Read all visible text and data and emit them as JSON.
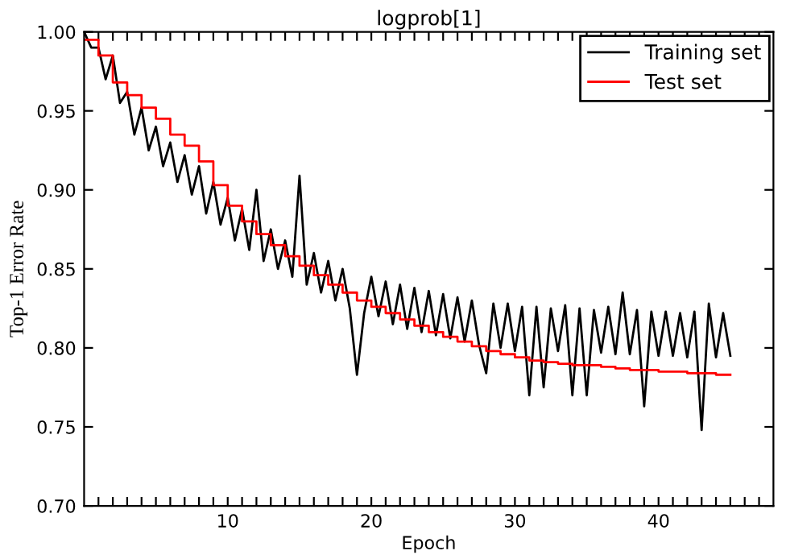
{
  "chart_data": {
    "type": "line",
    "title": "logprob[1]",
    "xlabel": "Epoch",
    "ylabel": "Top-1 Error Rate",
    "xlim": [
      0,
      48
    ],
    "ylim": [
      0.7,
      1.0
    ],
    "xticks": [
      {
        "value": 1,
        "label": null
      },
      {
        "value": 2,
        "label": null
      },
      {
        "value": 3,
        "label": null
      },
      {
        "value": 4,
        "label": null
      },
      {
        "value": 5,
        "label": null
      },
      {
        "value": 6,
        "label": null
      },
      {
        "value": 7,
        "label": null
      },
      {
        "value": 8,
        "label": null
      },
      {
        "value": 9,
        "label": null
      },
      10,
      {
        "value": 11,
        "label": null
      },
      {
        "value": 12,
        "label": null
      },
      {
        "value": 13,
        "label": null
      },
      {
        "value": 14,
        "label": null
      },
      {
        "value": 15,
        "label": null
      },
      {
        "value": 16,
        "label": null
      },
      {
        "value": 17,
        "label": null
      },
      {
        "value": 18,
        "label": null
      },
      {
        "value": 19,
        "label": null
      },
      20,
      {
        "value": 21,
        "label": null
      },
      {
        "value": 22,
        "label": null
      },
      {
        "value": 23,
        "label": null
      },
      {
        "value": 24,
        "label": null
      },
      {
        "value": 25,
        "label": null
      },
      {
        "value": 26,
        "label": null
      },
      {
        "value": 27,
        "label": null
      },
      {
        "value": 28,
        "label": null
      },
      {
        "value": 29,
        "label": null
      },
      30,
      {
        "value": 31,
        "label": null
      },
      {
        "value": 32,
        "label": null
      },
      {
        "value": 33,
        "label": null
      },
      {
        "value": 34,
        "label": null
      },
      {
        "value": 35,
        "label": null
      },
      {
        "value": 36,
        "label": null
      },
      {
        "value": 37,
        "label": null
      },
      {
        "value": 38,
        "label": null
      },
      {
        "value": 39,
        "label": null
      },
      40,
      {
        "value": 41,
        "label": null
      },
      {
        "value": 42,
        "label": null
      },
      {
        "value": 43,
        "label": null
      },
      {
        "value": 44,
        "label": null
      },
      {
        "value": 45,
        "label": null
      },
      {
        "value": 46,
        "label": null
      },
      {
        "value": 47,
        "label": null
      }
    ],
    "yticks": [
      {
        "value": 0.7,
        "label": "0.70"
      },
      {
        "value": 0.75,
        "label": "0.75"
      },
      {
        "value": 0.8,
        "label": "0.80"
      },
      {
        "value": 0.85,
        "label": "0.85"
      },
      {
        "value": 0.9,
        "label": "0.90"
      },
      {
        "value": 0.95,
        "label": "0.95"
      },
      {
        "value": 1.0,
        "label": "1.00"
      }
    ],
    "grid": false,
    "legend": "top right",
    "series": [
      {
        "name": "Training set",
        "color": "#000000",
        "x": [
          0,
          0.5,
          1,
          1.5,
          2,
          2.5,
          3,
          3.5,
          4,
          4.5,
          5,
          5.5,
          6,
          6.5,
          7,
          7.5,
          8,
          8.5,
          9,
          9.5,
          10,
          10.5,
          11,
          11.5,
          12,
          12.5,
          13,
          13.5,
          14,
          14.5,
          15,
          15.5,
          16,
          16.5,
          17,
          17.5,
          18,
          18.5,
          19,
          19.5,
          20,
          20.5,
          21,
          21.5,
          22,
          22.5,
          23,
          23.5,
          24,
          24.5,
          25,
          25.5,
          26,
          26.5,
          27,
          27.5,
          28,
          28.5,
          29,
          29.5,
          30,
          30.5,
          31,
          31.5,
          32,
          32.5,
          33,
          33.5,
          34,
          34.5,
          35,
          35.5,
          36,
          36.5,
          37,
          37.5,
          38,
          38.5,
          39,
          39.5,
          40,
          40.5,
          41,
          41.5,
          42,
          42.5,
          43,
          43.5,
          44,
          44.5,
          45
        ],
        "values": [
          1.0,
          0.99,
          0.99,
          0.97,
          0.985,
          0.955,
          0.962,
          0.935,
          0.952,
          0.925,
          0.94,
          0.915,
          0.93,
          0.905,
          0.922,
          0.897,
          0.915,
          0.885,
          0.905,
          0.878,
          0.895,
          0.868,
          0.888,
          0.862,
          0.9,
          0.855,
          0.875,
          0.85,
          0.868,
          0.845,
          0.909,
          0.84,
          0.86,
          0.835,
          0.855,
          0.83,
          0.85,
          0.825,
          0.783,
          0.822,
          0.845,
          0.82,
          0.842,
          0.815,
          0.84,
          0.812,
          0.838,
          0.81,
          0.836,
          0.808,
          0.834,
          0.806,
          0.832,
          0.804,
          0.83,
          0.802,
          0.784,
          0.828,
          0.8,
          0.828,
          0.798,
          0.826,
          0.77,
          0.826,
          0.775,
          0.825,
          0.798,
          0.827,
          0.77,
          0.825,
          0.77,
          0.824,
          0.797,
          0.826,
          0.796,
          0.835,
          0.796,
          0.824,
          0.763,
          0.823,
          0.795,
          0.823,
          0.795,
          0.822,
          0.794,
          0.823,
          0.748,
          0.828,
          0.794,
          0.822,
          0.795
        ]
      },
      {
        "name": "Test set",
        "color": "#ff0000",
        "type": "step",
        "x": [
          0,
          1,
          2,
          3,
          4,
          5,
          6,
          7,
          8,
          9,
          10,
          11,
          12,
          13,
          14,
          15,
          16,
          17,
          18,
          19,
          20,
          21,
          22,
          23,
          24,
          25,
          26,
          27,
          28,
          29,
          30,
          31,
          32,
          33,
          34,
          35,
          36,
          37,
          38,
          39,
          40,
          41,
          42,
          43,
          44,
          45
        ],
        "values": [
          0.995,
          0.985,
          0.968,
          0.96,
          0.952,
          0.945,
          0.935,
          0.928,
          0.918,
          0.903,
          0.89,
          0.88,
          0.872,
          0.865,
          0.858,
          0.852,
          0.846,
          0.84,
          0.835,
          0.83,
          0.826,
          0.822,
          0.818,
          0.814,
          0.81,
          0.807,
          0.804,
          0.801,
          0.798,
          0.796,
          0.794,
          0.792,
          0.791,
          0.79,
          0.789,
          0.789,
          0.788,
          0.787,
          0.786,
          0.786,
          0.785,
          0.785,
          0.784,
          0.784,
          0.783,
          0.783
        ]
      }
    ]
  }
}
